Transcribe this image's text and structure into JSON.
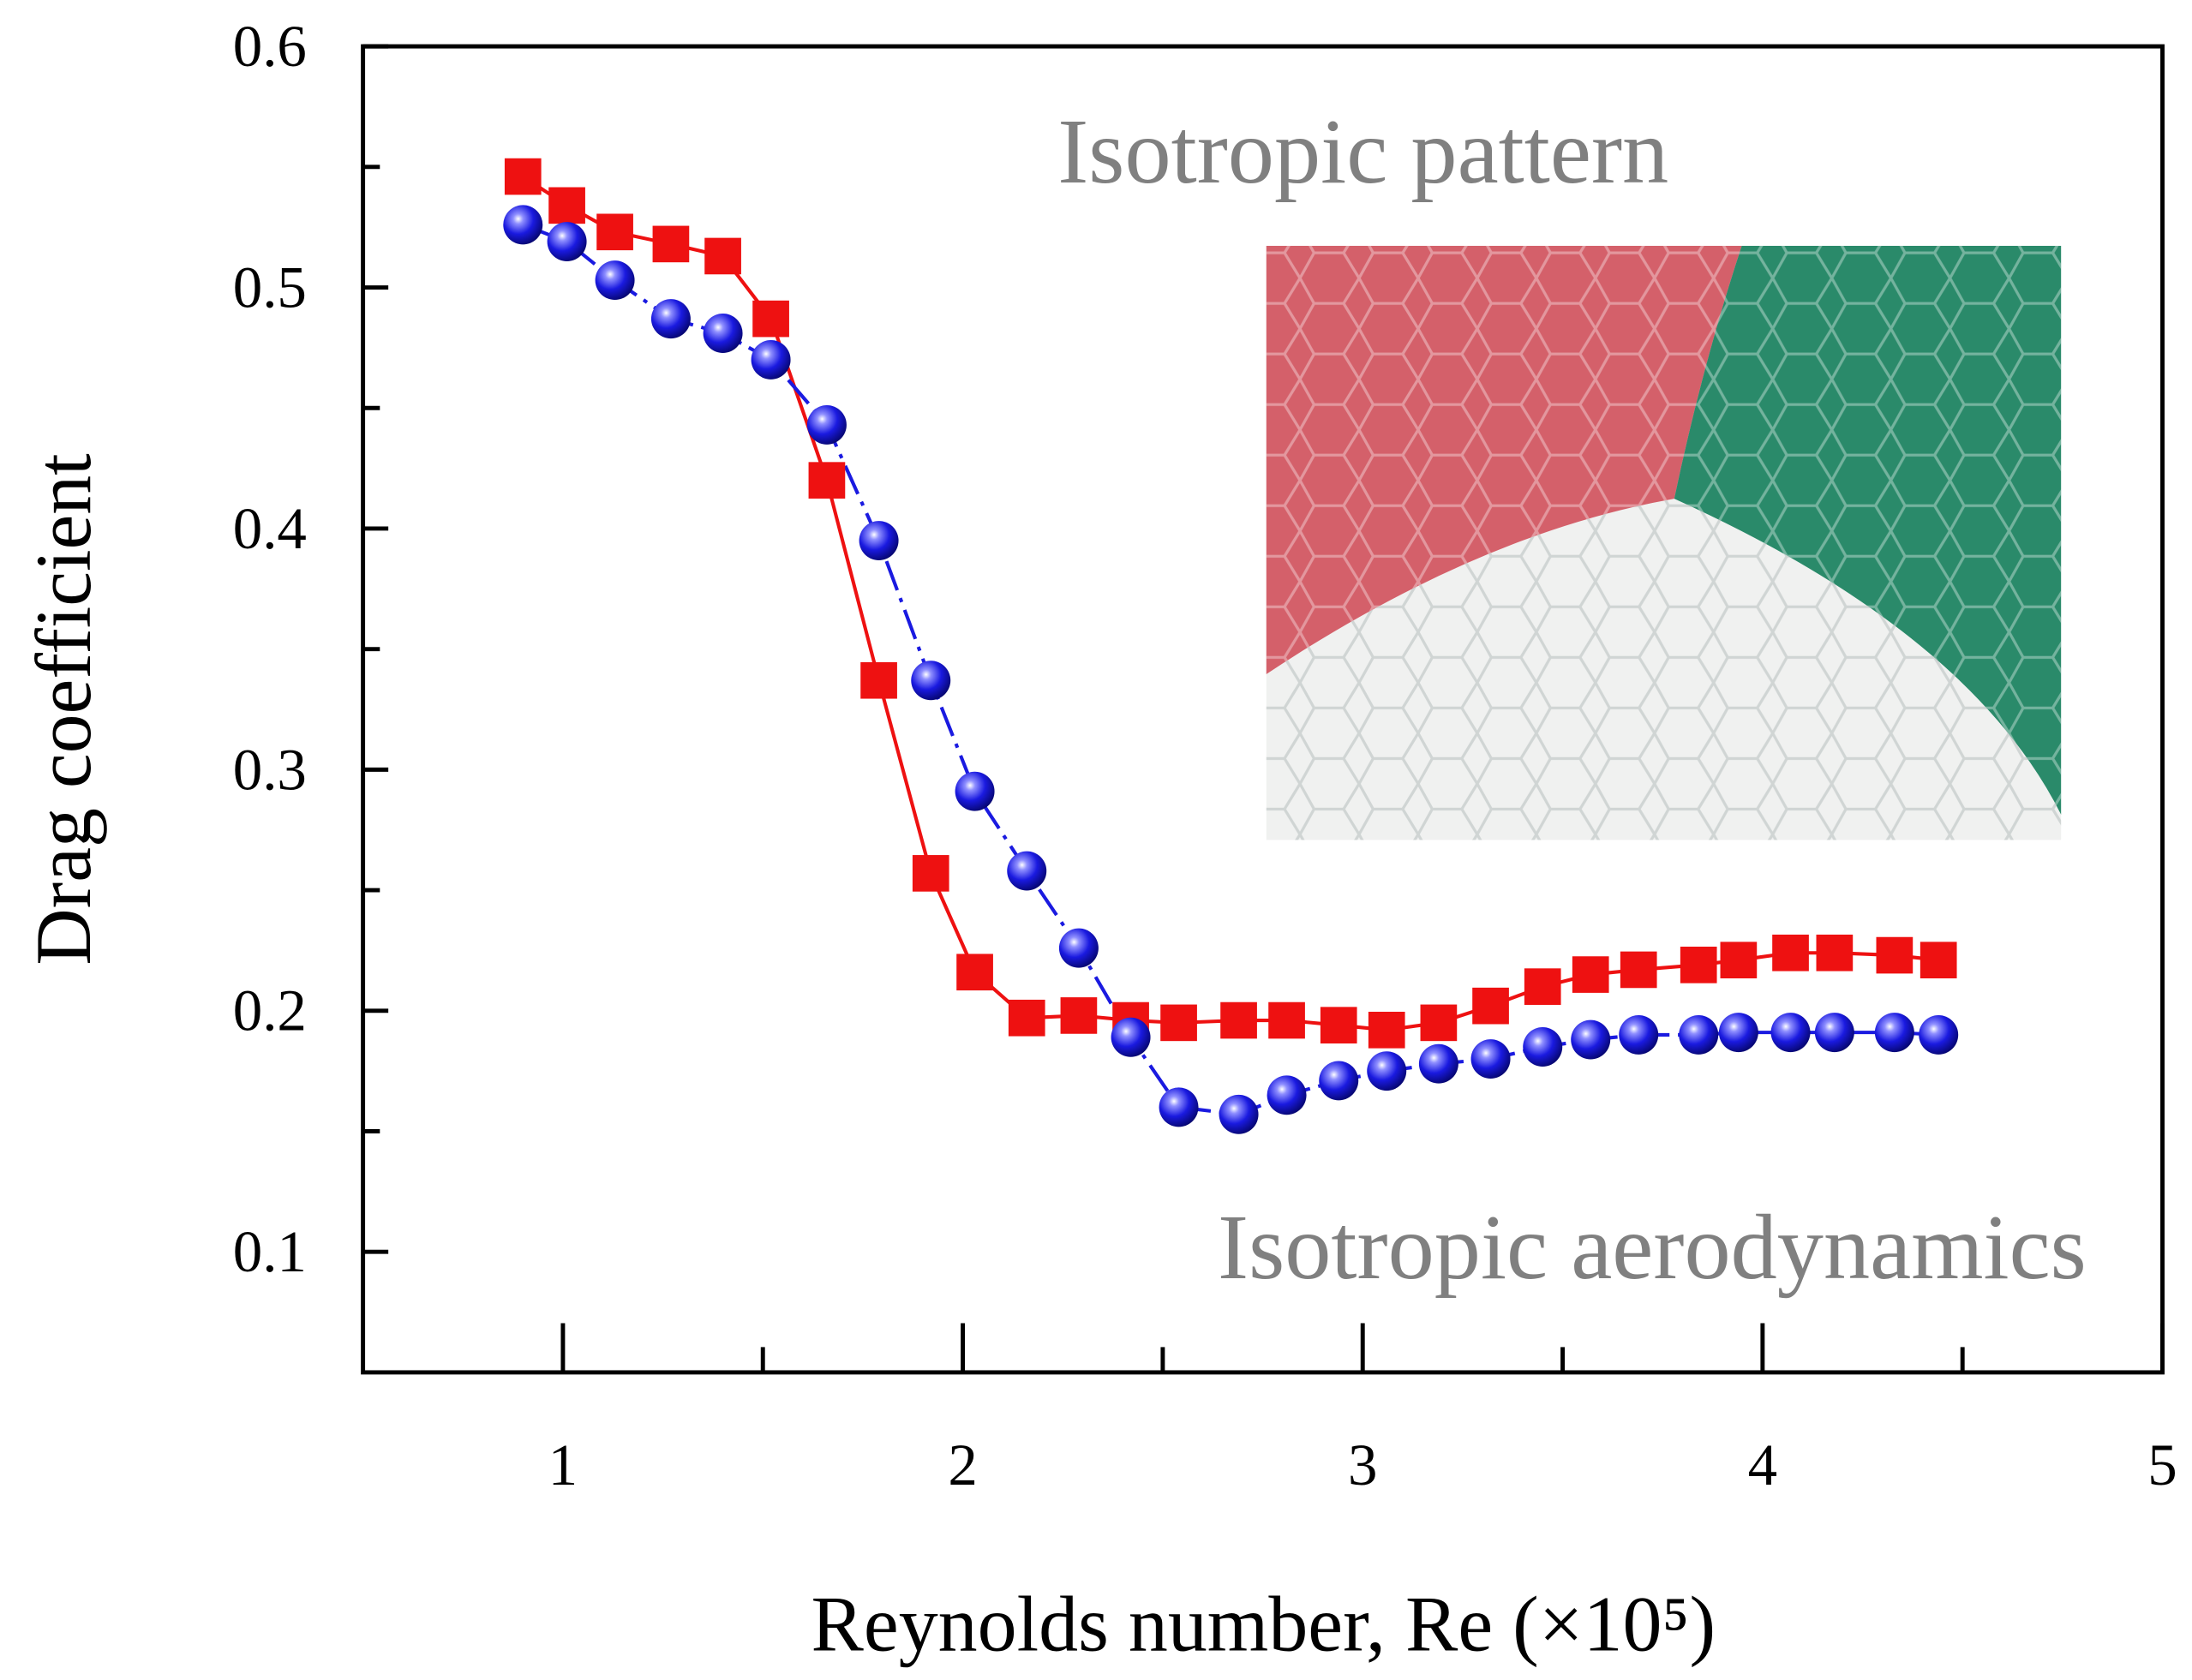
{
  "chart_data": {
    "type": "scatter",
    "xlabel": "Reynolds number, Re (×10⁵)",
    "ylabel": "Drag coefficient",
    "annotations": [
      "Isotropic pattern",
      "Isotropic aerodynamics"
    ],
    "x": [
      0.9,
      1.01,
      1.13,
      1.27,
      1.4,
      1.52,
      1.66,
      1.79,
      1.92,
      2.03,
      2.16,
      2.29,
      2.42,
      2.54,
      2.69,
      2.81,
      2.94,
      3.06,
      3.19,
      3.32,
      3.45,
      3.57,
      3.69,
      3.84,
      3.94,
      4.07,
      4.18,
      4.33,
      4.44
    ],
    "series": [
      {
        "color": "#ee1111",
        "marker": "square",
        "line": "solid",
        "values": [
          0.546,
          0.534,
          0.523,
          0.518,
          0.513,
          0.487,
          0.42,
          0.337,
          0.257,
          0.216,
          0.197,
          0.198,
          0.196,
          0.195,
          0.196,
          0.196,
          0.194,
          0.192,
          0.195,
          0.202,
          0.21,
          0.215,
          0.217,
          0.219,
          0.221,
          0.224,
          0.224,
          0.223,
          0.221
        ]
      },
      {
        "color": "#1a1ae0",
        "marker": "sphere",
        "line": "dashdot",
        "values": [
          0.526,
          0.519,
          0.503,
          0.487,
          0.481,
          0.47,
          0.443,
          0.395,
          0.337,
          0.291,
          0.258,
          0.226,
          0.189,
          0.16,
          0.157,
          0.165,
          0.171,
          0.175,
          0.178,
          0.18,
          0.185,
          0.188,
          0.19,
          0.19,
          0.191,
          0.191,
          0.191,
          0.191,
          0.19
        ]
      }
    ],
    "xlim": [
      0.5,
      5
    ],
    "xticks": [
      1,
      2,
      3,
      4,
      5
    ],
    "xminorticks": [
      1.5,
      2.5,
      3.5,
      4.5
    ],
    "ylim": [
      0.05,
      0.6
    ],
    "yticks": [
      0.1,
      0.2,
      0.3,
      0.4,
      0.5,
      0.6
    ],
    "yminorticks": [
      0.15,
      0.25,
      0.35,
      0.45,
      0.55
    ]
  }
}
